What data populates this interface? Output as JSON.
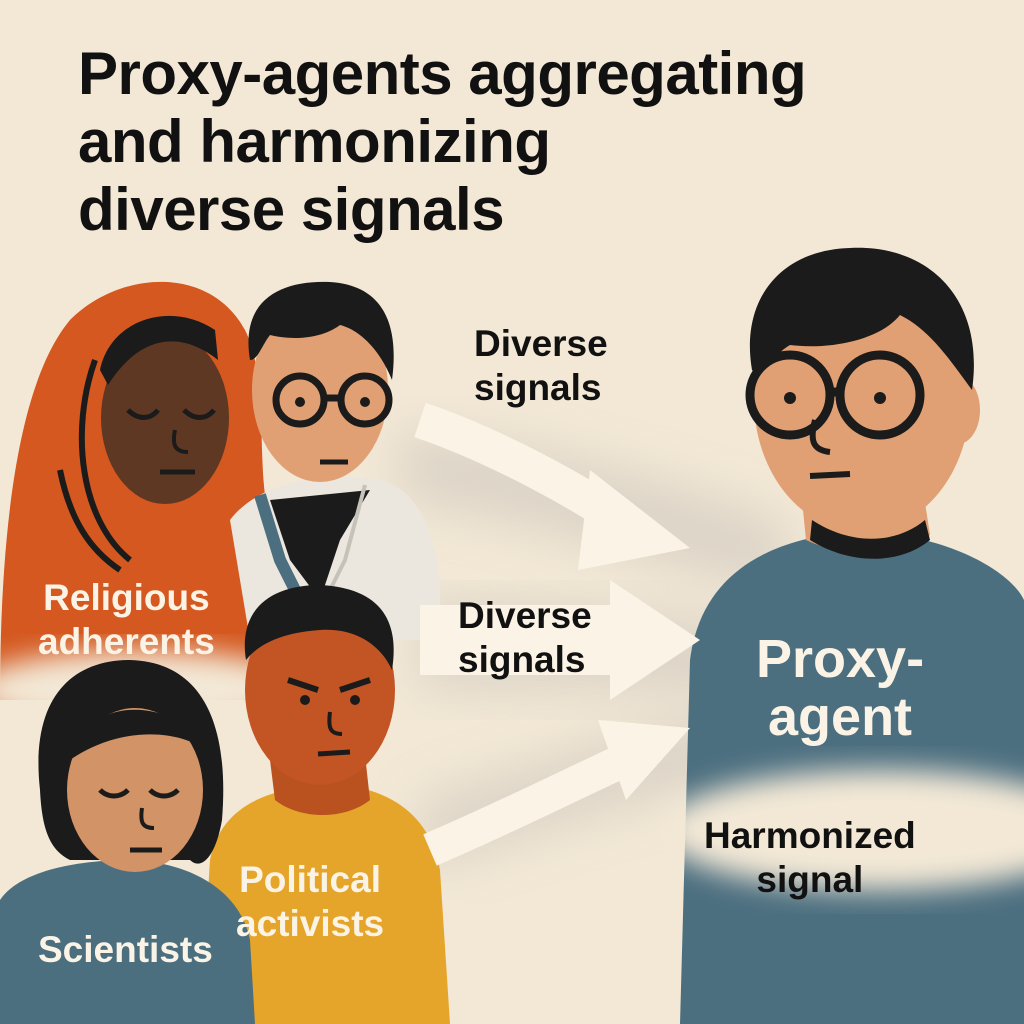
{
  "title_lines": [
    "Proxy-agents aggregating",
    "and harmonizing",
    "diverse signals"
  ],
  "signal_label_top": [
    "Diverse",
    "signals"
  ],
  "signal_label_middle": [
    "Diverse",
    "signals"
  ],
  "output_label": [
    "Harmonized",
    "signal"
  ],
  "groups": {
    "religious": [
      "Religious",
      "adherents"
    ],
    "political": [
      "Political",
      "activists"
    ],
    "scientists": [
      "Scientists"
    ]
  },
  "proxy_label": [
    "Proxy-",
    "agent"
  ],
  "colors": {
    "background": "#f3e8d6",
    "headscarf": "#d4581f",
    "teal_shirt": "#4c6f80",
    "yellow_shirt": "#e5a52a",
    "skin_light": "#e0a073",
    "skin_dark": "#5e3822",
    "arrow": "#fbf4e6"
  }
}
